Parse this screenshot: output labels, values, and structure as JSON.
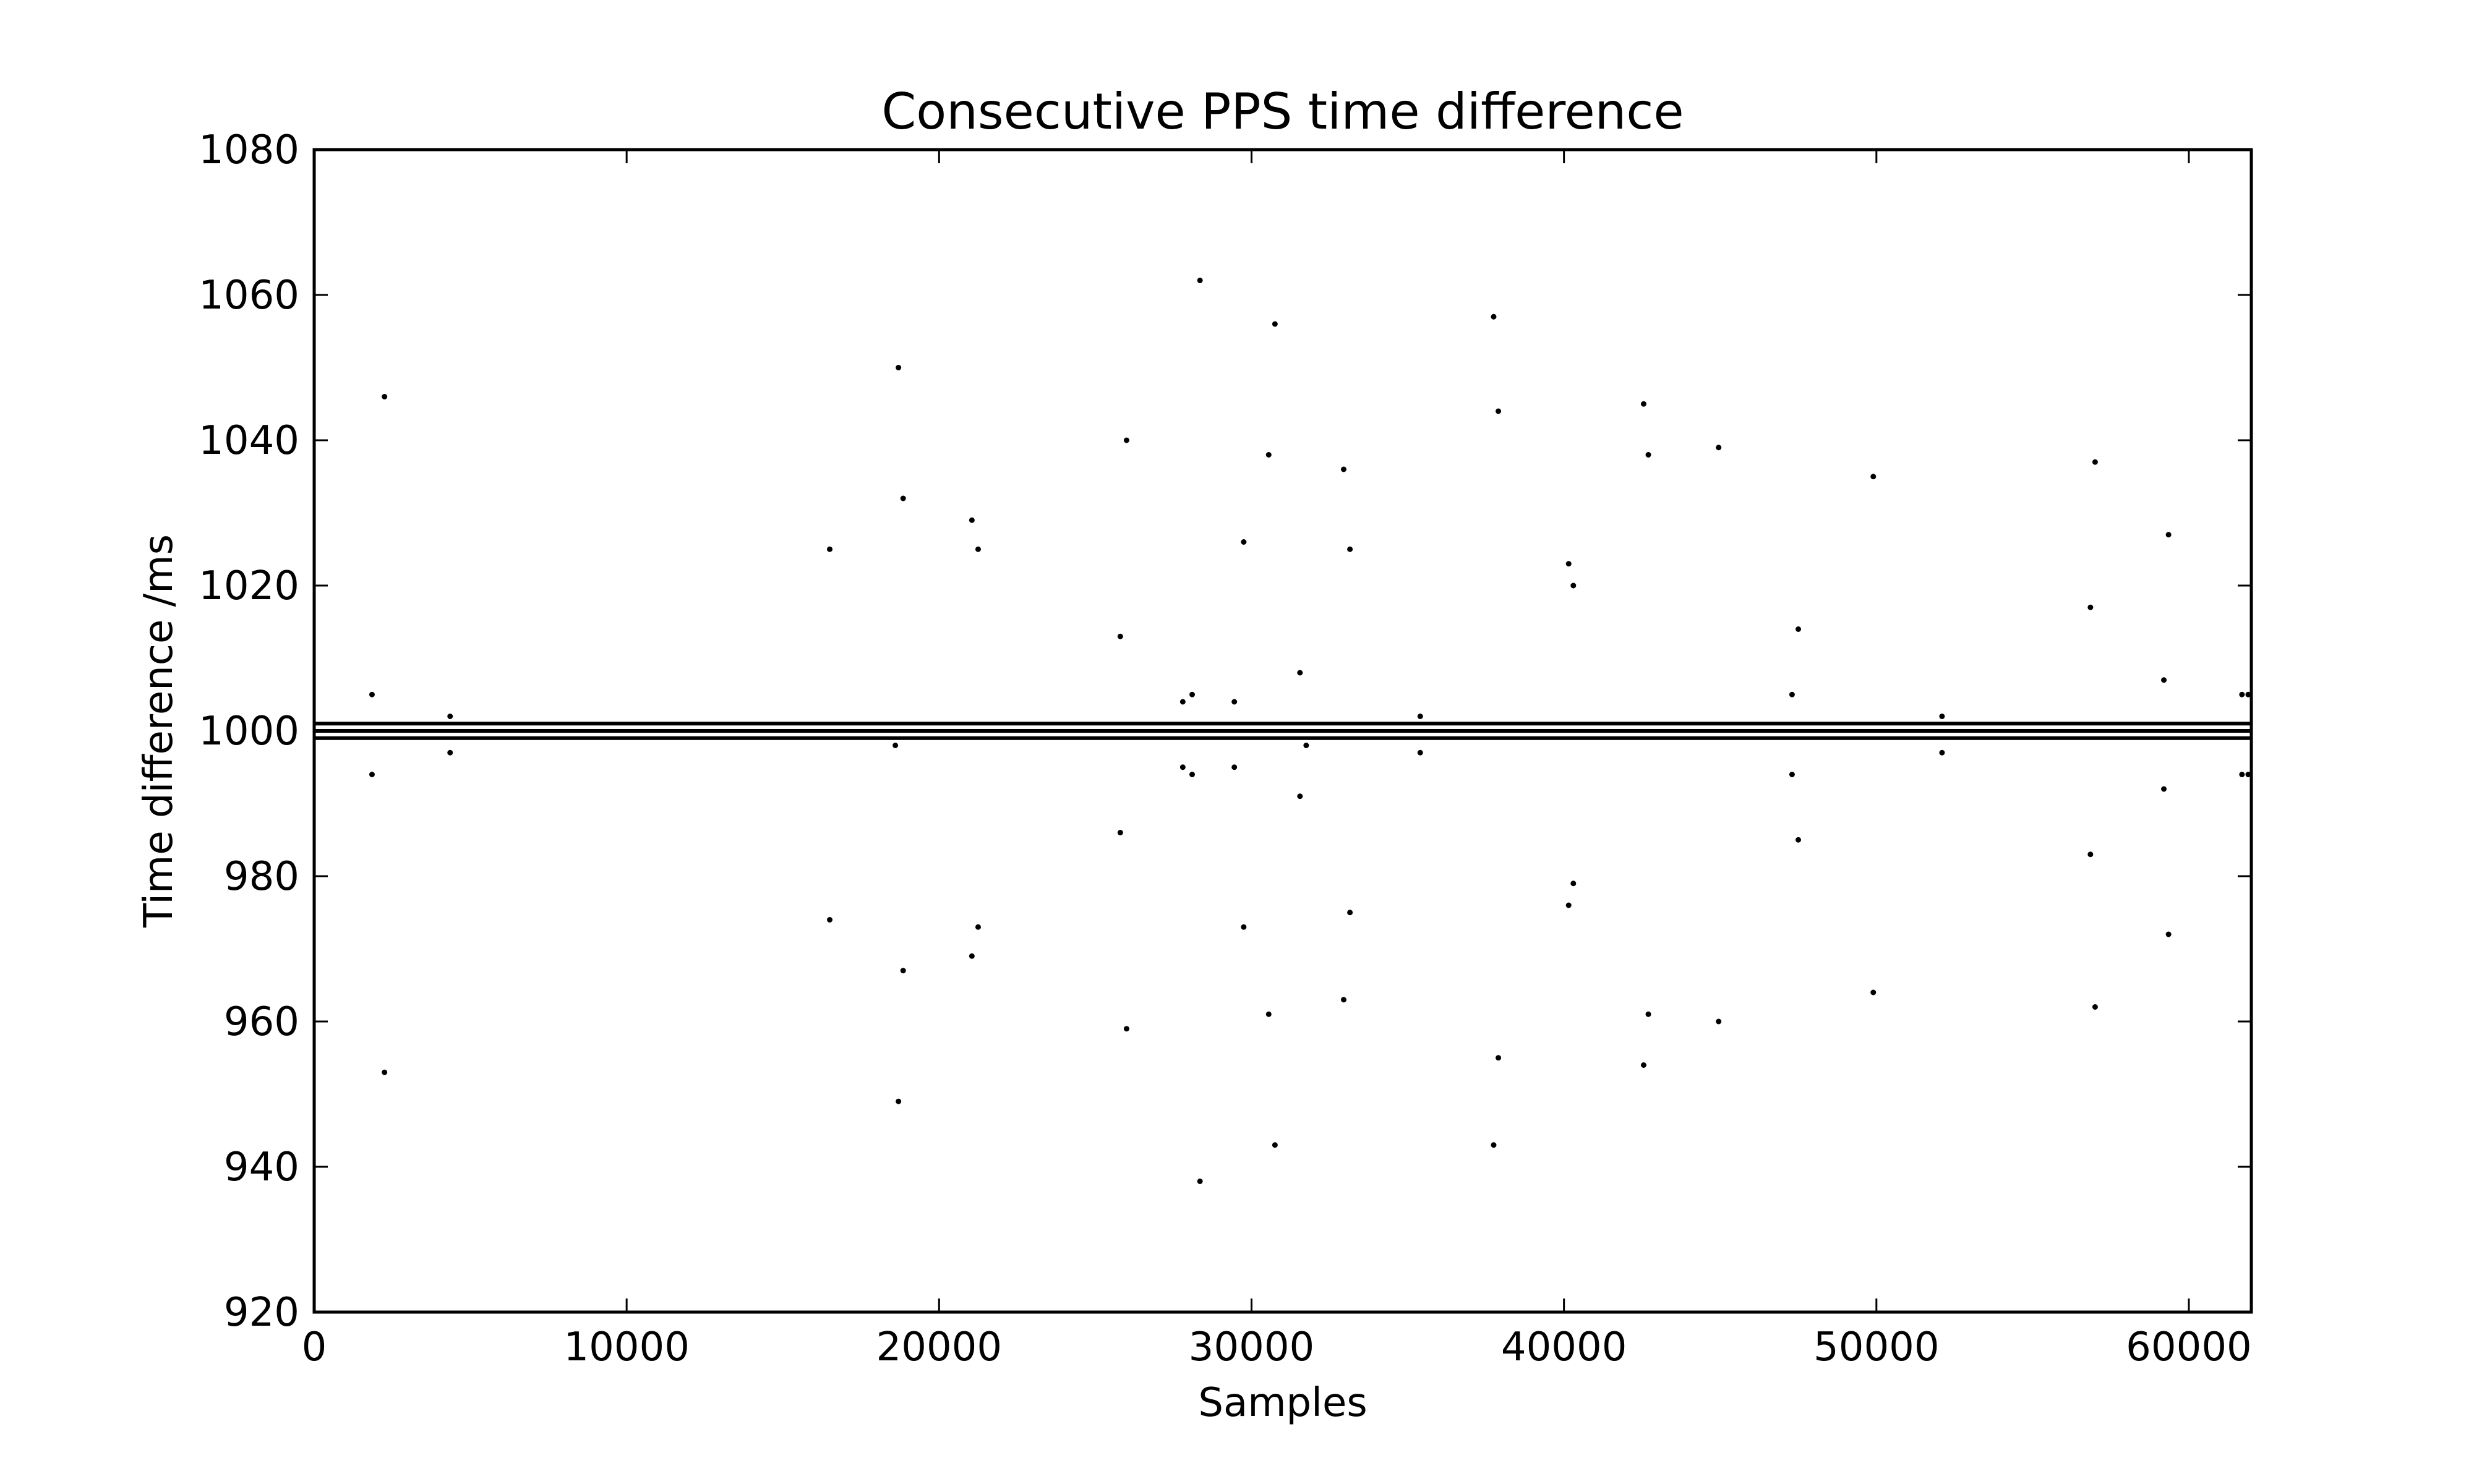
{
  "chart_data": {
    "type": "scatter",
    "title": "Consecutive PPS time difference",
    "xlabel": "Samples",
    "ylabel": "Time difference /ms",
    "xlim": [
      0,
      62000
    ],
    "ylim": [
      920,
      1080
    ],
    "xticks": [
      0,
      10000,
      20000,
      30000,
      40000,
      50000,
      60000
    ],
    "yticks": [
      920,
      940,
      960,
      980,
      1000,
      1020,
      1040,
      1060,
      1080
    ],
    "grid": false,
    "legend": "none",
    "colors": {
      "points": "#000000",
      "axes": "#000000",
      "background": "#ffffff"
    },
    "baseline_bands": [
      {
        "y": 1001,
        "x_range": [
          0,
          62000
        ]
      },
      {
        "y": 1000,
        "x_range": [
          0,
          62000
        ]
      },
      {
        "y": 999,
        "x_range": [
          0,
          62000
        ]
      }
    ],
    "series": [
      {
        "values": [
          [
            1850,
            1005
          ],
          [
            1850,
            994
          ],
          [
            2250,
            1046
          ],
          [
            2250,
            953
          ],
          [
            4350,
            1002
          ],
          [
            4350,
            997
          ],
          [
            16500,
            1025
          ],
          [
            16500,
            974
          ],
          [
            18600,
            998
          ],
          [
            18700,
            1050
          ],
          [
            18700,
            949
          ],
          [
            18850,
            1032
          ],
          [
            18850,
            967
          ],
          [
            21050,
            1029
          ],
          [
            21050,
            969
          ],
          [
            21250,
            1025
          ],
          [
            21250,
            973
          ],
          [
            25800,
            1013
          ],
          [
            25800,
            986
          ],
          [
            26000,
            1040
          ],
          [
            26000,
            959
          ],
          [
            27800,
            1004
          ],
          [
            27800,
            995
          ],
          [
            28100,
            1005
          ],
          [
            28100,
            994
          ],
          [
            28350,
            1062
          ],
          [
            28350,
            938
          ],
          [
            29450,
            1004
          ],
          [
            29450,
            995
          ],
          [
            29750,
            1026
          ],
          [
            29750,
            973
          ],
          [
            30550,
            1038
          ],
          [
            30550,
            961
          ],
          [
            30750,
            1056
          ],
          [
            30750,
            943
          ],
          [
            31550,
            1008
          ],
          [
            31550,
            991
          ],
          [
            31750,
            998
          ],
          [
            32950,
            1036
          ],
          [
            32950,
            963
          ],
          [
            33150,
            1025
          ],
          [
            33150,
            975
          ],
          [
            35400,
            1002
          ],
          [
            35400,
            997
          ],
          [
            37750,
            1057
          ],
          [
            37750,
            943
          ],
          [
            37900,
            1044
          ],
          [
            37900,
            955
          ],
          [
            40150,
            1023
          ],
          [
            40150,
            976
          ],
          [
            40300,
            1020
          ],
          [
            40300,
            979
          ],
          [
            42550,
            1045
          ],
          [
            42550,
            954
          ],
          [
            42700,
            1038
          ],
          [
            42700,
            961
          ],
          [
            44950,
            1039
          ],
          [
            44950,
            960
          ],
          [
            47300,
            1005
          ],
          [
            47300,
            994
          ],
          [
            47500,
            1014
          ],
          [
            47500,
            985
          ],
          [
            49900,
            1035
          ],
          [
            49900,
            964
          ],
          [
            52100,
            1002
          ],
          [
            52100,
            997
          ],
          [
            56850,
            1017
          ],
          [
            56850,
            983
          ],
          [
            57000,
            1037
          ],
          [
            57000,
            962
          ],
          [
            59200,
            1007
          ],
          [
            59200,
            992
          ],
          [
            59350,
            1027
          ],
          [
            59350,
            972
          ],
          [
            61700,
            1005
          ],
          [
            61700,
            994
          ],
          [
            61900,
            1005
          ],
          [
            61900,
            994
          ]
        ]
      }
    ]
  }
}
